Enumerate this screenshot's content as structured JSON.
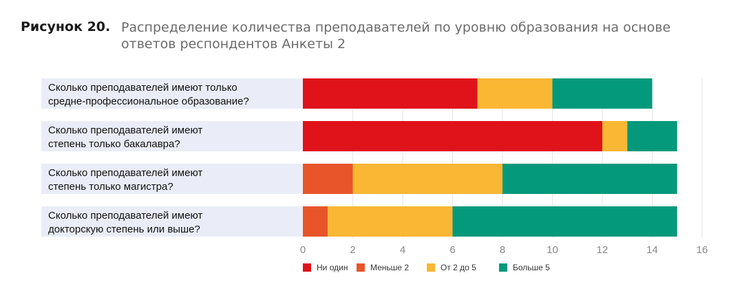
{
  "figure": {
    "label": "Рисунок 20.",
    "title": "Распределение количества преподавателей по уровню образования на основе ответов респондентов Анкеты 2"
  },
  "colors": {
    "none": "#e0121a",
    "less2": "#e8552b",
    "two_to_five": "#f9b733",
    "more5": "#05997b",
    "category_band": "#eaedf7",
    "gridline": "#e6e6e6",
    "tick_label": "#888888"
  },
  "chart_data": {
    "type": "bar",
    "orientation": "horizontal",
    "stacked": true,
    "categories": [
      [
        "Сколько преподавателей имеют только",
        "средне-профессиональное образование?"
      ],
      [
        "Сколько преподавателей имеют",
        "степень только бакалавра?"
      ],
      [
        "Сколько преподавателей имеют",
        "степень только магистра?"
      ],
      [
        "Сколько преподавателей имеют",
        "докторскую степень или выше?"
      ]
    ],
    "series": [
      {
        "name": "Ни один",
        "color": "#e0121a",
        "values": [
          7,
          12,
          0,
          0
        ]
      },
      {
        "name": "Меньше 2",
        "color": "#e8552b",
        "values": [
          0,
          0,
          2,
          1
        ]
      },
      {
        "name": "От 2 до 5",
        "color": "#f9b733",
        "values": [
          3,
          1,
          6,
          5
        ]
      },
      {
        "name": "Больше 5",
        "color": "#05997b",
        "values": [
          4,
          2,
          7,
          9
        ]
      }
    ],
    "xlim": [
      0,
      16
    ],
    "xticks": [
      0,
      2,
      4,
      6,
      8,
      10,
      12,
      14,
      16
    ],
    "grid": true,
    "legend_position": "bottom"
  }
}
